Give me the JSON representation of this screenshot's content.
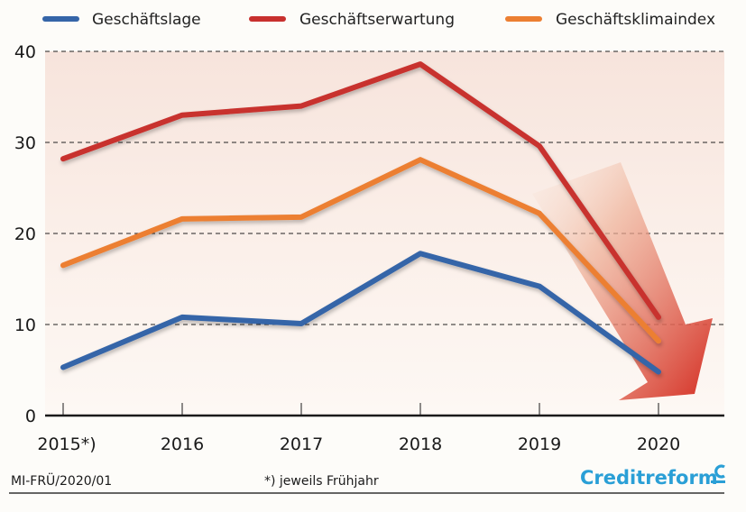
{
  "chart_data": {
    "type": "line",
    "title": "",
    "xlabel": "",
    "ylabel": "",
    "categories": [
      "2015*)",
      "2016",
      "2017",
      "2018",
      "2019",
      "2020"
    ],
    "ylim": [
      0,
      40
    ],
    "yticks": [
      0,
      10,
      20,
      30,
      40
    ],
    "grid": true,
    "legend_position": "top",
    "series": [
      {
        "name": "Geschäftslage",
        "color": "#3565a8",
        "values": [
          5.3,
          10.8,
          10.1,
          17.8,
          14.2,
          4.8
        ]
      },
      {
        "name": "Geschäftserwartung",
        "color": "#c8302e",
        "values": [
          28.2,
          33.0,
          34.0,
          38.6,
          29.6,
          10.8
        ]
      },
      {
        "name": "Geschäftsklimaindex",
        "color": "#ec7f32",
        "values": [
          16.5,
          21.6,
          21.8,
          28.1,
          22.2,
          8.2
        ]
      }
    ],
    "annotations": [
      "downward trend arrow toward 2020"
    ]
  },
  "footer": {
    "source_code": "MI-FRÜ/2020/01",
    "footnote": "*) jeweils Frühjahr",
    "brand": "Creditreform"
  },
  "colors": {
    "brand": "#2a9fd6",
    "arrow_start": "#f3c9b4",
    "arrow_end": "#d42d22"
  }
}
